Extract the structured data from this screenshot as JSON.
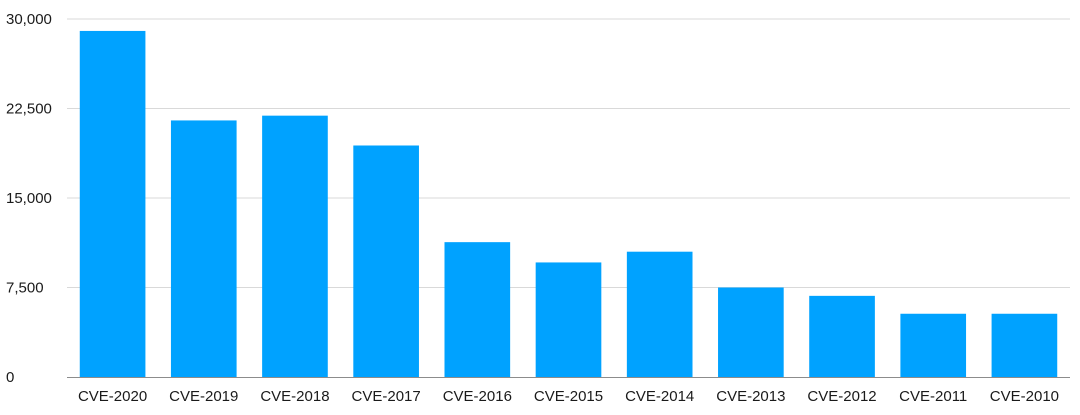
{
  "chart_data": {
    "type": "bar",
    "title": "",
    "xlabel": "",
    "ylabel": "",
    "categories": [
      "CVE-2020",
      "CVE-2019",
      "CVE-2018",
      "CVE-2017",
      "CVE-2016",
      "CVE-2015",
      "CVE-2014",
      "CVE-2013",
      "CVE-2012",
      "CVE-2011",
      "CVE-2010"
    ],
    "values": [
      29000,
      21500,
      21900,
      19400,
      11300,
      9600,
      10500,
      7500,
      6800,
      5300,
      5300
    ],
    "ylim": [
      0,
      30000
    ],
    "yticks": [
      0,
      7500,
      15000,
      22500,
      30000
    ],
    "ytick_labels": [
      "0",
      "7,500",
      "15,000",
      "22,500",
      "30,000"
    ],
    "grid": true,
    "legend": "none",
    "bar_color": "#00a2ff",
    "grid_color": "#d9d9d9"
  }
}
